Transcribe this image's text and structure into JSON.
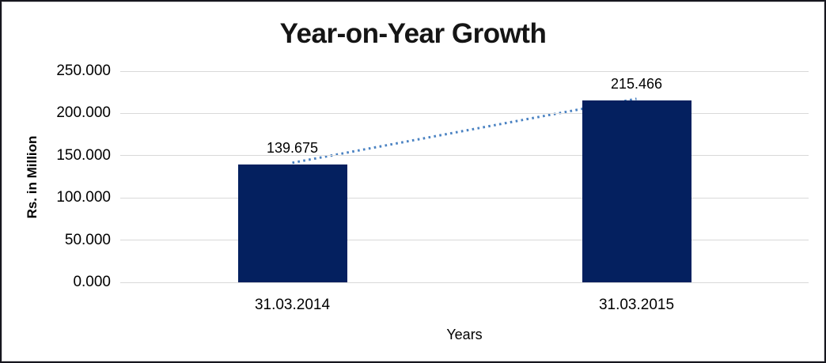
{
  "chart_data": {
    "type": "bar",
    "title": "Year-on-Year Growth",
    "xlabel": "Years",
    "ylabel": "Rs. in Million",
    "categories": [
      "31.03.2014",
      "31.03.2015"
    ],
    "values": [
      139.675,
      215.466
    ],
    "data_labels": [
      "139.675",
      "215.466"
    ],
    "ylim": [
      0,
      250
    ],
    "yticks": [
      {
        "value": 0,
        "label": "0.000"
      },
      {
        "value": 50,
        "label": "50.000"
      },
      {
        "value": 100,
        "label": "100.000"
      },
      {
        "value": 150,
        "label": "150.000"
      },
      {
        "value": 200,
        "label": "200.000"
      },
      {
        "value": 250,
        "label": "250.000"
      }
    ],
    "grid": "horizontal",
    "legend": "none",
    "trendline": {
      "style": "dotted",
      "connects": [
        "31.03.2014",
        "31.03.2015"
      ]
    },
    "colors": {
      "bar": "#04205f",
      "trendline": "#4a82c2",
      "gridline": "#d9d9d9",
      "text": "#000000",
      "frame_border": "#16161e"
    }
  }
}
